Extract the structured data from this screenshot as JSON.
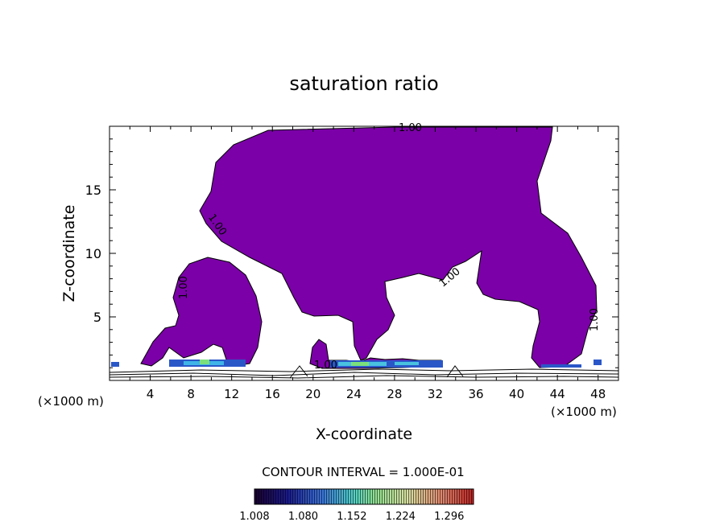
{
  "chart_data": {
    "type": "heatmap",
    "title": "saturation ratio",
    "xlabel": "X-coordinate",
    "ylabel": "Z-coordinate",
    "x_unit_left": "(×1000 m)",
    "x_unit_right": "(×1000 m)",
    "xlim": [
      0,
      50
    ],
    "ylim": [
      0,
      20
    ],
    "x_ticks": [
      4,
      8,
      12,
      16,
      20,
      24,
      28,
      32,
      36,
      40,
      44,
      48
    ],
    "y_ticks": [
      5,
      10,
      15
    ],
    "contour_interval_text": "CONTOUR INTERVAL = 1.000E-01",
    "contour_labels": [
      "1.00",
      "1.00",
      "1.00",
      "1.00",
      "1.00",
      "1.00"
    ],
    "colorbar": {
      "range": [
        1.008,
        1.332
      ],
      "tick_labels": [
        "1.008",
        "1.080",
        "1.152",
        "1.224",
        "1.296"
      ]
    },
    "fill_color": "#7b00a8",
    "regions": [
      {
        "name": "upper-saturated-region",
        "value": 1.0
      },
      {
        "name": "left-saturated-region",
        "value": 1.0
      },
      {
        "name": "middle-saturated-region",
        "value": 1.0
      }
    ]
  }
}
